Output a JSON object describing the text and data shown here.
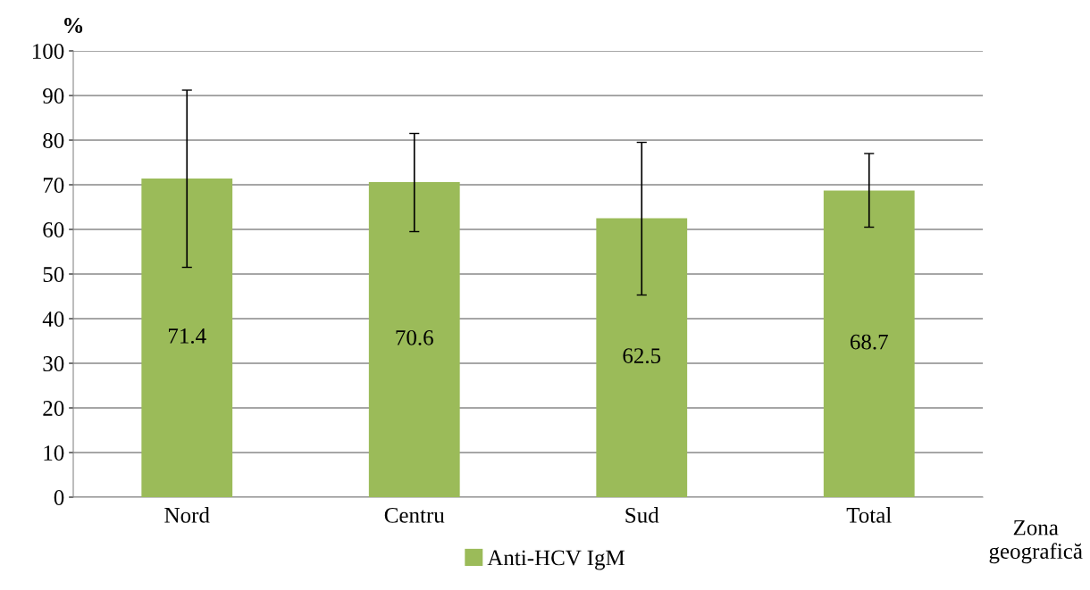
{
  "chart_data": {
    "type": "bar",
    "xlabel": "Zona\ngeografică",
    "ylabel": "%",
    "categories": [
      "Nord",
      "Centru",
      "Sud",
      "Total"
    ],
    "series": [
      {
        "name": "Anti-HCV IgM",
        "color": "#9bbb59",
        "values": [
          71.4,
          70.6,
          62.5,
          68.7
        ],
        "errors": [
          [
            51.5,
            91.2
          ],
          [
            59.5,
            81.5
          ],
          [
            45.3,
            79.5
          ],
          [
            60.5,
            77.0
          ]
        ]
      }
    ],
    "ylim": [
      0,
      100
    ],
    "yticks": [
      0,
      10,
      20,
      30,
      40,
      50,
      60,
      70,
      80,
      90,
      100
    ],
    "grid": "y",
    "legend": "bottom",
    "data_labels": true
  }
}
